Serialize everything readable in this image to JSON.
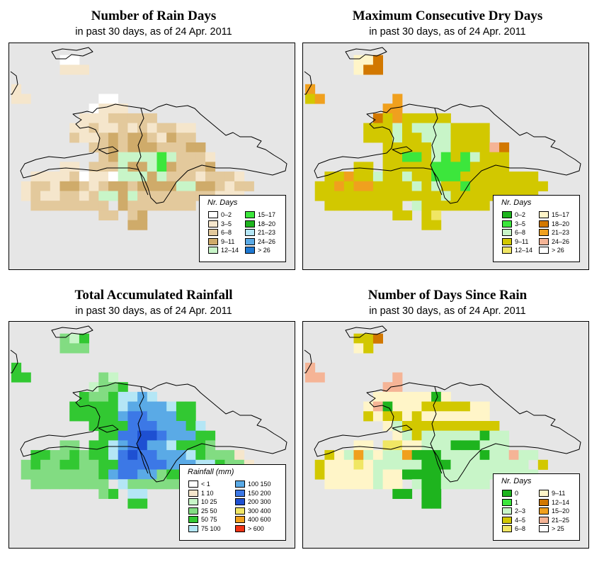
{
  "chart_data": [
    {
      "type": "heatmap",
      "id": "rain-days",
      "title": "Number of Rain Days",
      "subtitle": "in past 30 days, as of  24 Apr. 2011",
      "legend_title": "Nr. Days",
      "classes": [
        {
          "label": "0–2",
          "color": "#ffffff"
        },
        {
          "label": "3–5",
          "color": "#f5e6cc"
        },
        {
          "label": "6–8",
          "color": "#e3c99c"
        },
        {
          "label": "9–11",
          "color": "#cfab6a"
        },
        {
          "label": "12–14",
          "color": "#c8f5c8"
        },
        {
          "label": "15–17",
          "color": "#3ce63c"
        },
        {
          "label": "18–20",
          "color": "#1eb41e"
        },
        {
          "label": "21–23",
          "color": "#b4e6f5"
        },
        {
          "label": "24–26",
          "color": "#5aaae6"
        },
        {
          "label": "> 26",
          "color": "#1e78d2"
        }
      ],
      "grid": [
        "..........................",
        ".....00...................",
        ".....111..................",
        "..........................",
        "1.........................",
        "11.......00...............",
        "........0111..............",
        ".......11122222...........",
        "......1121121212211.......",
        "......2112323321322.......",
        "........223233322233......",
        ".........234444542221.....",
        ".....11.2224334532223.....",
        "..1111201104443422212221..",
        ".122133212332333344332122.",
        ".12112212443422222222111..",
        "..22222222.32222222.......",
        ".........22.23............",
        "............33............",
        "..........................",
        ".........................."
      ]
    },
    {
      "type": "heatmap",
      "id": "dry-days",
      "title": "Maximum Consecutive Dry Days",
      "subtitle": "in past 30 days, as of  24 Apr. 2011",
      "legend_title": "Nr. Days",
      "classes": [
        {
          "label": "0–2",
          "color": "#1eb41e"
        },
        {
          "label": "3–5",
          "color": "#3ce63c"
        },
        {
          "label": "6–8",
          "color": "#c8f5c8"
        },
        {
          "label": "9–11",
          "color": "#d2c800"
        },
        {
          "label": "12–14",
          "color": "#f0e664"
        },
        {
          "label": "15–17",
          "color": "#fff5c8"
        },
        {
          "label": "18–20",
          "color": "#d27800"
        },
        {
          "label": "21–23",
          "color": "#f0a01e"
        },
        {
          "label": "24–26",
          "color": "#f5b496"
        },
        {
          "label": "> 26",
          "color": "#ffffff"
        }
      ],
      "grid": [
        "..........................",
        ".....556..................",
        ".....566..................",
        "..........................",
        "7.........................",
        "37.......7................",
        "........77................",
        ".......63733333...........",
        "......3332322223333.......",
        "......3332332223333.......",
        "........3333322333386.....",
        "........3311321312333.....",
        ".....33.3333311113333.....",
        "..3373323323311133333333..",
        ".337377333323233133333333.",
        ".33333333333332333333333..",
        "..33333333.23333333.......",
        ".........33.34............",
        "............33............",
        "..........................",
        ".........................."
      ]
    },
    {
      "type": "heatmap",
      "id": "rainfall",
      "title": "Total Accumulated Rainfall",
      "subtitle": "in past 30 days, as of  24 Apr. 2011",
      "legend_title": "Rainfall (mm)",
      "classes": [
        {
          "label": "< 1",
          "color": "#ffffff"
        },
        {
          "label": "1  10",
          "color": "#f5e6cc"
        },
        {
          "label": "10  25",
          "color": "#c8f5c8"
        },
        {
          "label": "25  50",
          "color": "#82dc82"
        },
        {
          "label": "50  75",
          "color": "#32c832"
        },
        {
          "label": "75  100",
          "color": "#b4e6f5"
        },
        {
          "label": "100  150",
          "color": "#5aaae6"
        },
        {
          "label": "150  200",
          "color": "#3c78e6"
        },
        {
          "label": "200  300",
          "color": "#1e50d2"
        },
        {
          "label": "300  400",
          "color": "#f0e664"
        },
        {
          "label": "400  600",
          "color": "#f0a01e"
        },
        {
          "label": "> 600",
          "color": "#f03214"
        }
      ],
      "grid": [
        "..........................",
        ".....324..................",
        ".....333..................",
        "..........................",
        "4.........................",
        "44.......32...............",
        "........2334..............",
        ".......43345565...........",
        "......4444456666544.......",
        "......4444467766644.......",
        "........444477766645......",
        ".........447788766644.....",
        ".....33.4456786654443.....",
        "..4433434457877666543331..",
        ".343344334477777666554331.",
        ".33333333467766344433333..",
        "..33333333.53333333.......",
        ".........34.55............",
        "............44............",
        "..........................",
        ".........................."
      ]
    },
    {
      "type": "heatmap",
      "id": "days-since-rain",
      "title": "Number of Days Since Rain",
      "subtitle": "in past 30 days, as of  24 Apr. 2011",
      "legend_title": "Nr. Days",
      "classes": [
        {
          "label": "0",
          "color": "#1eb41e"
        },
        {
          "label": "1",
          "color": "#3ce63c"
        },
        {
          "label": "2–3",
          "color": "#c8f5c8"
        },
        {
          "label": "4–5",
          "color": "#d2c800"
        },
        {
          "label": "6–8",
          "color": "#f0e664"
        },
        {
          "label": "9–11",
          "color": "#fff5c8"
        },
        {
          "label": "12–14",
          "color": "#d27800"
        },
        {
          "label": "15–20",
          "color": "#f0a01e"
        },
        {
          "label": "21–25",
          "color": "#f5b496"
        },
        {
          "label": "> 25",
          "color": "#ffffff"
        }
      ],
      "grid": [
        "..........................",
        ".....336..................",
        ".....53...................",
        "..........................",
        "8.........................",
        "88.......8................",
        "........88................",
        ".......55555505...........",
        "......5805553333355.......",
        "......3533535555555.......",
        "........523333333333......",
        ".........523222222022.....",
        ".....55.4455222000222.....",
        "..3527252270002222022822..",
        ".3555452222200022222222.3.",
        ".35555525500002222222222..",
        "..55555255.20022222.......",
        ".........00.00............",
        "............00............",
        "..........................",
        ".........................."
      ]
    }
  ]
}
